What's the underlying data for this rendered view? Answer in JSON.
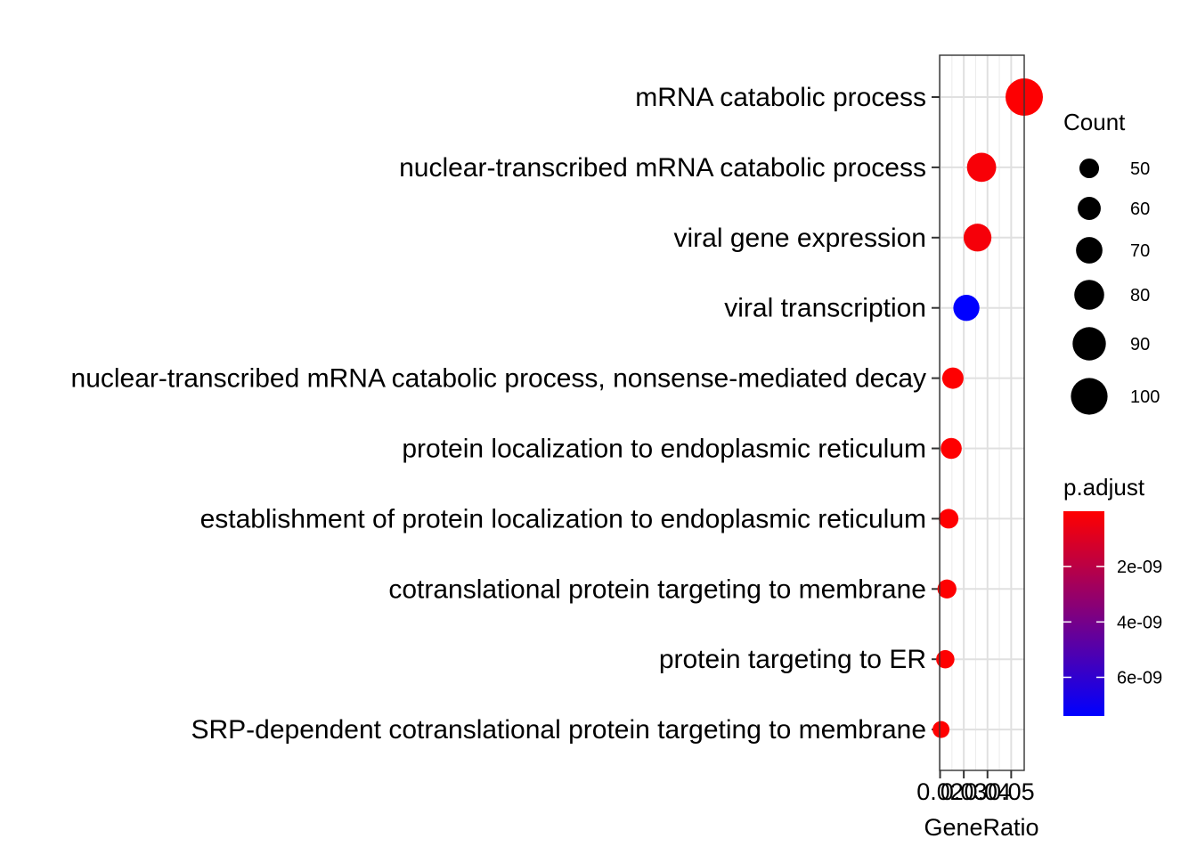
{
  "chart_data": {
    "type": "scatter",
    "xlabel": "GeneRatio",
    "ylabel": "",
    "xlim": [
      0.0198,
      0.0555
    ],
    "x_ticks": [
      {
        "value": 0.02,
        "label": "0.02"
      },
      {
        "value": 0.03,
        "label": "0.03"
      },
      {
        "value": 0.04,
        "label": "0.04"
      },
      {
        "value": 0.05,
        "label": "0.05"
      }
    ],
    "categories": [
      "mRNA catabolic process",
      "nuclear-transcribed mRNA catabolic process",
      "viral gene expression",
      "viral transcription",
      "nuclear-transcribed mRNA catabolic process, nonsense-mediated decay",
      "protein localization to endoplasmic reticulum",
      "establishment of protein localization to endoplasmic reticulum",
      "cotranslational protein targeting to membrane",
      "protein targeting to ER",
      "SRP-dependent cotranslational protein targeting to membrane"
    ],
    "gene_ratio": [
      0.0555,
      0.0375,
      0.0358,
      0.0311,
      0.0254,
      0.0247,
      0.0236,
      0.0229,
      0.0222,
      0.0204
    ],
    "count": [
      102,
      78,
      74,
      69,
      55,
      54,
      50,
      48,
      46,
      42
    ],
    "p_adjust": [
      5e-11,
      2e-10,
      2.5e-10,
      7.4e-09,
      2e-11,
      2e-11,
      3e-11,
      2e-11,
      2e-11,
      1e-11
    ],
    "size_legend": {
      "title": "Count",
      "values": [
        50,
        60,
        70,
        80,
        90,
        100
      ],
      "labels": [
        "50",
        "60",
        "70",
        "80",
        "90",
        "100"
      ]
    },
    "color_legend": {
      "title": "p.adjust",
      "low_color": "#FF0000",
      "high_color": "#0000FF",
      "range": [
        0,
        7.4e-09
      ],
      "ticks": [
        {
          "value": 2e-09,
          "label": "2e-09"
        },
        {
          "value": 4e-09,
          "label": "4e-09"
        },
        {
          "value": 6e-09,
          "label": "6e-09"
        }
      ]
    },
    "grid": true,
    "legend_position": "right"
  }
}
